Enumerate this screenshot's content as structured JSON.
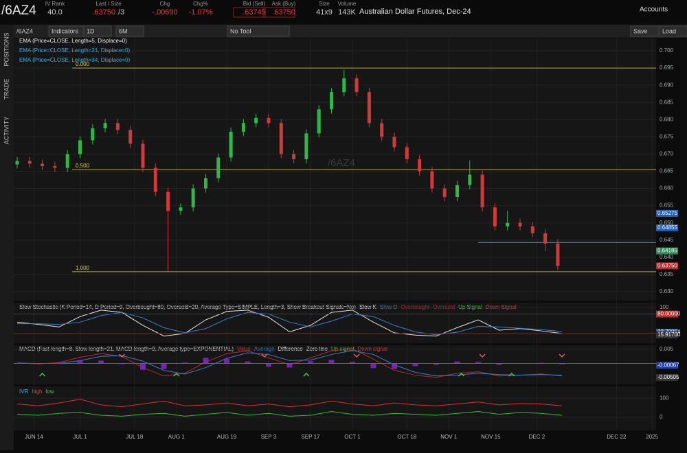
{
  "header": {
    "symbol": "/6AZ4",
    "quotes": [
      {
        "label": "IV Rank",
        "value": "40.0"
      },
      {
        "label": "Last / Size",
        "value": ".63750",
        "extra": "/3"
      },
      {
        "label": "Chg",
        "value": "-.00690"
      },
      {
        "label": "Chg%",
        "value": "-1.07%"
      },
      {
        "label": "Bid (Sell)",
        "value": ".63745"
      },
      {
        "label": "Ask (Buy)",
        "value": ".63750"
      },
      {
        "label": "Size",
        "value": "41x9"
      },
      {
        "label": "Volume",
        "value": "143K"
      }
    ],
    "description": "Australian Dollar Futures, Dec-24",
    "accounts": "Accounts"
  },
  "side_tabs": [
    "POSITIONS",
    "TRADE",
    "ACTIVITY"
  ],
  "toolbar": {
    "symbol": "/6AZ4",
    "indicators": "Indicators",
    "interval": "1D",
    "range": "6M",
    "tool": "No Tool",
    "save": "Save",
    "load": "Load"
  },
  "price_chart": {
    "watermark": "/6AZ4",
    "studies": [
      {
        "text": "EMA (Price=CLOSE, Length=5, Displace=0)",
        "color": "#e8e8e8"
      },
      {
        "text": "EMA (Price=CLOSE, Length=21, Displace=0)",
        "color": "#3ab0e0"
      },
      {
        "text": "EMA (Price=CLOSE, Length=34, Displace=0)",
        "color": "#3ab0e0"
      }
    ],
    "ylim": [
      0.6274,
      0.7036
    ],
    "yticks": [
      {
        "value": 0.63,
        "label": "0.630"
      },
      0.635,
      {
        "value": 0.64,
        "label": "0.640"
      },
      0.645,
      {
        "value": 0.65,
        "label": "0.650"
      },
      0.655,
      {
        "value": 0.66,
        "label": "0.660"
      },
      0.665,
      {
        "value": 0.67,
        "label": "0.670"
      },
      0.675,
      {
        "value": 0.68,
        "label": "0.680"
      },
      0.685,
      {
        "value": 0.69,
        "label": "0.690"
      },
      0.695,
      {
        "value": 0.7,
        "label": "0.700"
      }
    ],
    "fib_levels": [
      {
        "value": 0.695,
        "label": "0.000"
      },
      {
        "value": 0.6655,
        "label": "0.500"
      },
      {
        "value": 0.6358,
        "label": "1.000"
      }
    ],
    "support_line": {
      "value": 0.6443,
      "start": 110
    },
    "price_markers": [
      {
        "value": 0.65275,
        "label": "0.65275",
        "color": "#1f5fb8"
      },
      {
        "value": 0.64855,
        "label": "0.64855",
        "color": "#1f5fb8"
      },
      {
        "value": 0.64185,
        "label": "0.64185",
        "color": "#2e8b57"
      },
      {
        "value": 0.6375,
        "label": "0.63750",
        "color": "#c0282a"
      }
    ],
    "x": [
      0,
      3,
      6,
      9,
      12,
      15,
      18,
      21,
      24,
      27,
      30,
      33,
      36,
      39,
      42,
      45,
      48,
      51,
      54,
      57,
      60,
      63,
      66,
      69,
      72,
      75,
      78,
      81,
      84,
      87,
      90,
      93,
      96,
      99,
      102,
      105,
      108,
      111,
      114,
      117,
      120,
      123,
      126,
      129
    ],
    "candles": [
      [
        0.667,
        0.6692,
        0.6658,
        0.668
      ],
      [
        0.668,
        0.6692,
        0.666,
        0.6672
      ],
      [
        0.6672,
        0.6684,
        0.6653,
        0.6665
      ],
      [
        0.6665,
        0.6677,
        0.6648,
        0.666
      ],
      [
        0.666,
        0.6712,
        0.6648,
        0.67
      ],
      [
        0.67,
        0.6752,
        0.6688,
        0.674
      ],
      [
        0.674,
        0.6787,
        0.6728,
        0.6775
      ],
      [
        0.6775,
        0.6802,
        0.6763,
        0.679
      ],
      [
        0.679,
        0.6802,
        0.6758,
        0.677
      ],
      [
        0.677,
        0.6782,
        0.6718,
        0.673
      ],
      [
        0.673,
        0.6742,
        0.6648,
        0.666
      ],
      [
        0.666,
        0.6672,
        0.6578,
        0.659
      ],
      [
        0.659,
        0.6602,
        0.6358,
        0.6535
      ],
      [
        0.6535,
        0.6557,
        0.6523,
        0.6545
      ],
      [
        0.6545,
        0.6612,
        0.6533,
        0.66
      ],
      [
        0.66,
        0.6642,
        0.6588,
        0.663
      ],
      [
        0.663,
        0.6702,
        0.6618,
        0.669
      ],
      [
        0.669,
        0.6777,
        0.6678,
        0.6765
      ],
      [
        0.6765,
        0.6802,
        0.6753,
        0.679
      ],
      [
        0.679,
        0.6817,
        0.6778,
        0.6805
      ],
      [
        0.6805,
        0.6817,
        0.6778,
        0.679
      ],
      [
        0.679,
        0.6802,
        0.6688,
        0.67
      ],
      [
        0.67,
        0.6712,
        0.6673,
        0.6685
      ],
      [
        0.6685,
        0.6772,
        0.6673,
        0.676
      ],
      [
        0.676,
        0.6842,
        0.6748,
        0.683
      ],
      [
        0.683,
        0.6892,
        0.6818,
        0.688
      ],
      [
        0.688,
        0.6945,
        0.6868,
        0.692
      ],
      [
        0.692,
        0.6932,
        0.6868,
        0.688
      ],
      [
        0.688,
        0.6892,
        0.6778,
        0.679
      ],
      [
        0.679,
        0.6802,
        0.6738,
        0.675
      ],
      [
        0.675,
        0.6762,
        0.6708,
        0.672
      ],
      [
        0.672,
        0.6732,
        0.6673,
        0.6685
      ],
      [
        0.6685,
        0.6697,
        0.6638,
        0.665
      ],
      [
        0.665,
        0.6662,
        0.6588,
        0.66
      ],
      [
        0.66,
        0.6612,
        0.6563,
        0.6575
      ],
      [
        0.6575,
        0.6622,
        0.6563,
        0.661
      ],
      [
        0.661,
        0.6682,
        0.6598,
        0.664
      ],
      [
        0.664,
        0.6652,
        0.6533,
        0.6545
      ],
      [
        0.6545,
        0.6557,
        0.6478,
        0.649
      ],
      [
        0.649,
        0.6535,
        0.6478,
        0.65
      ],
      [
        0.65,
        0.6512,
        0.6478,
        0.649
      ],
      [
        0.649,
        0.6502,
        0.6458,
        0.647
      ],
      [
        0.647,
        0.6482,
        0.6418,
        0.644
      ],
      [
        0.644,
        0.6452,
        0.6363,
        0.6375
      ]
    ]
  },
  "x_axis": {
    "ticks": [
      {
        "value": 4,
        "label": "JUN 14"
      },
      {
        "value": 15,
        "label": "JUL 1"
      },
      {
        "value": 28,
        "label": "JUL 18"
      },
      {
        "value": 38,
        "label": "AUG 1"
      },
      {
        "value": 50,
        "label": "AUG 19"
      },
      {
        "value": 60,
        "label": "SEP 3"
      },
      {
        "value": 70,
        "label": "SEP 17"
      },
      {
        "value": 80,
        "label": "OCT 1"
      },
      {
        "value": 93,
        "label": "OCT 18"
      },
      {
        "value": 103,
        "label": "NOV 1"
      },
      {
        "value": 113,
        "label": "NOV 15"
      },
      {
        "value": 124,
        "label": "DEC 2"
      },
      {
        "value": 143,
        "label": "DEC 22"
      },
      {
        "value": 151.5,
        "label": "2025"
      }
    ]
  },
  "stochastic": {
    "legend": [
      {
        "text": "Slow Stochastic (K Period=14, D Period=9, Overbought=80, Oversold=20, Average Type=SIMPLE, Length=3, Show Breakout Signals=No)",
        "color": "#cfcfcf"
      },
      {
        "text": "Slow K",
        "color": "#e8e8e8"
      },
      {
        "text": "Slow D",
        "color": "#3a7fd0"
      },
      {
        "text": "Overbought",
        "color": "#c0282a"
      },
      {
        "text": "Oversold",
        "color": "#c0282a"
      },
      {
        "text": "Up Signal",
        "color": "#3cd03c"
      },
      {
        "text": "Down Signal",
        "color": "#e04040"
      }
    ],
    "ylim": [
      -10,
      115
    ],
    "yticks": [
      100
    ],
    "overbought": 80,
    "oversold": 20,
    "markers": [
      {
        "value": 80,
        "label": "80.00000",
        "color": "#c0282a"
      },
      {
        "value": 23.79064,
        "label": "23.79064",
        "color": "#1f5fb8"
      },
      {
        "value": 15.917,
        "label": "15.91700",
        "color": "#333"
      }
    ],
    "x": [
      0,
      5,
      10,
      15,
      20,
      25,
      30,
      35,
      40,
      45,
      50,
      55,
      60,
      65,
      70,
      75,
      80,
      85,
      90,
      95,
      100,
      105,
      110,
      115,
      120,
      125,
      130
    ],
    "series": [
      {
        "name": "Slow K",
        "color": "#e8e8e8",
        "values": [
          55,
          48,
          40,
          72,
          92,
          85,
          45,
          12,
          20,
          62,
          88,
          92,
          70,
          25,
          45,
          85,
          92,
          55,
          22,
          15,
          12,
          38,
          62,
          30,
          35,
          28,
          20
        ]
      },
      {
        "name": "Slow D",
        "color": "#3a7fd0",
        "values": [
          50,
          50,
          48,
          55,
          75,
          85,
          68,
          38,
          22,
          35,
          65,
          85,
          80,
          55,
          40,
          58,
          80,
          72,
          45,
          25,
          16,
          24,
          42,
          40,
          36,
          32,
          26
        ]
      }
    ]
  },
  "macd": {
    "legend": [
      {
        "text": "MACD (Fast length=8, Slow length=21, MACD length=9, Average type=EXPONENTIAL)",
        "color": "#cfcfcf"
      },
      {
        "text": "Value",
        "color": "#e04040"
      },
      {
        "text": "Average",
        "color": "#3a7fd0"
      },
      {
        "text": "Difference",
        "color": "#e8e8e8"
      },
      {
        "text": "Zero line",
        "color": "#e8e8e8"
      },
      {
        "text": "Up signal",
        "color": "#3cd03c"
      },
      {
        "text": "Down signal",
        "color": "#e04040"
      }
    ],
    "ylim": [
      -0.0075,
      0.0065
    ],
    "yticks": [
      0.005
    ],
    "markers": [
      {
        "value": -0.00067,
        "label": "-0.00067",
        "color": "#1f3fa8"
      },
      {
        "value": -0.00505,
        "label": "-0.00505",
        "color": "#333"
      }
    ],
    "x": [
      0,
      5,
      10,
      15,
      20,
      25,
      30,
      35,
      40,
      45,
      50,
      55,
      60,
      65,
      70,
      75,
      80,
      85,
      90,
      95,
      100,
      105,
      110,
      115,
      120,
      125,
      130
    ],
    "series": [
      {
        "name": "Value",
        "color": "#c0282a",
        "values": [
          0.0002,
          -0.0002,
          0.0003,
          0.0022,
          0.0035,
          0.0025,
          -0.0015,
          -0.0045,
          -0.0035,
          0.0005,
          0.0035,
          0.0045,
          0.002,
          -0.0005,
          0.002,
          0.0045,
          0.0052,
          0.0015,
          -0.0025,
          -0.0042,
          -0.005,
          -0.0035,
          -0.003,
          -0.0045,
          -0.0042,
          -0.0038,
          -0.0045
        ]
      },
      {
        "name": "Average",
        "color": "#3a7fd0",
        "values": [
          0.0001,
          0,
          0,
          0.001,
          0.0025,
          0.0028,
          0.0008,
          -0.0025,
          -0.0038,
          -0.0015,
          0.0018,
          0.0038,
          0.0032,
          0.001,
          0.0012,
          0.0032,
          0.0046,
          0.0032,
          -0.0005,
          -0.0032,
          -0.0045,
          -0.0042,
          -0.0035,
          -0.004,
          -0.0042,
          -0.004,
          -0.0042
        ]
      }
    ],
    "up_signals": [
      6,
      38,
      69,
      106,
      118
    ],
    "down_signals": [
      25,
      59,
      81,
      111,
      130
    ]
  },
  "ivr": {
    "legend": [
      {
        "text": "IVR",
        "color": "#3ab0e0"
      },
      {
        "text": "high",
        "color": "#e04040"
      },
      {
        "text": "low",
        "color": "#3cd03c"
      }
    ],
    "ylim": [
      -70,
      163
    ],
    "yticks": [
      100,
      0
    ],
    "x": [
      0,
      5,
      10,
      15,
      20,
      25,
      30,
      35,
      40,
      45,
      50,
      55,
      60,
      65,
      70,
      75,
      80,
      85,
      90,
      95,
      100,
      105,
      110,
      115,
      120,
      125,
      130
    ],
    "series": [
      {
        "name": "high",
        "color": "#e03030",
        "values": [
          70,
          60,
          75,
          95,
          65,
          55,
          70,
          85,
          60,
          65,
          75,
          60,
          70,
          55,
          65,
          85,
          70,
          60,
          75,
          65,
          60,
          70,
          80,
          65,
          72,
          70,
          60
        ]
      },
      {
        "name": "low",
        "color": "#30c030",
        "values": [
          15,
          10,
          20,
          25,
          10,
          5,
          15,
          20,
          5,
          15,
          25,
          10,
          20,
          5,
          10,
          30,
          15,
          10,
          20,
          15,
          10,
          20,
          30,
          15,
          25,
          20,
          10
        ]
      }
    ]
  }
}
